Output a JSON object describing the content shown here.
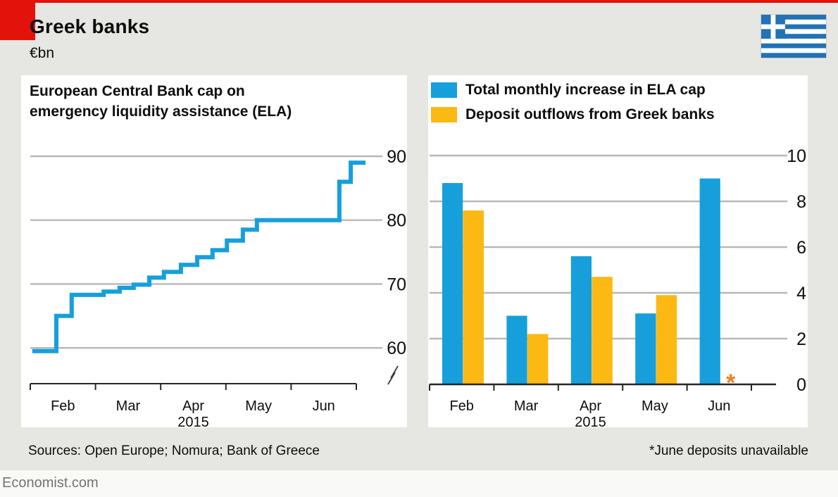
{
  "header": {
    "title": "Greek banks",
    "unit": "€bn"
  },
  "icons": {
    "flag": "greece-flag",
    "axis_break": "axis-break-icon",
    "missing_data": "asterisk"
  },
  "colors": {
    "accent_red": "#e3120b",
    "blue": "#169fdb",
    "yellow": "#fdb913",
    "orange_asterisk": "#f57e20",
    "grid": "#b8b8b8",
    "axis": "#262626"
  },
  "footer": {
    "sources": "Sources: Open Europe; Nomura; Bank of Greece",
    "footnote": "*June deposits unavailable",
    "site": "Economist.com"
  },
  "chart_data": [
    {
      "type": "line",
      "subtype": "step",
      "title_lines": [
        "European Central Bank cap on",
        "emergency liquidity assistance (ELA)"
      ],
      "x_tick_labels": [
        "Feb",
        "Mar",
        "Apr",
        "May",
        "Jun"
      ],
      "x_axis_note": "2015",
      "y_ticks": [
        60,
        70,
        80,
        90
      ],
      "ylim": [
        57,
        93
      ],
      "axis_break": true,
      "grid": true,
      "series": [
        {
          "name": "ELA cap (€bn)",
          "color": "#169fdb",
          "points": [
            {
              "x": 0.006,
              "v": 59.5
            },
            {
              "x": 0.08,
              "v": 65.0
            },
            {
              "x": 0.127,
              "v": 68.3
            },
            {
              "x": 0.225,
              "v": 68.8
            },
            {
              "x": 0.274,
              "v": 69.4
            },
            {
              "x": 0.317,
              "v": 69.9
            },
            {
              "x": 0.365,
              "v": 71.0
            },
            {
              "x": 0.41,
              "v": 71.9
            },
            {
              "x": 0.462,
              "v": 73.0
            },
            {
              "x": 0.512,
              "v": 74.2
            },
            {
              "x": 0.559,
              "v": 75.3
            },
            {
              "x": 0.603,
              "v": 76.8
            },
            {
              "x": 0.652,
              "v": 78.5
            },
            {
              "x": 0.695,
              "v": 80.0
            },
            {
              "x": 0.948,
              "v": 86.0
            },
            {
              "x": 0.983,
              "v": 89.0
            },
            {
              "x": 1.028,
              "v": 89.0
            }
          ]
        }
      ]
    },
    {
      "type": "bar",
      "categories": [
        "Feb",
        "Mar",
        "Apr",
        "May",
        "Jun"
      ],
      "x_axis_note": "2015",
      "y_ticks": [
        0,
        2,
        4,
        6,
        8,
        10
      ],
      "ylim": [
        0,
        10
      ],
      "grid": true,
      "legend_position": "top-left",
      "series": [
        {
          "name": "Total monthly increase in ELA cap",
          "color": "#169fdb",
          "values": [
            8.8,
            3.0,
            5.6,
            3.1,
            9.0
          ]
        },
        {
          "name": "Deposit outflows from Greek banks",
          "color": "#fdb913",
          "values": [
            7.6,
            2.2,
            4.7,
            3.9,
            null
          ]
        }
      ],
      "missing_marker": {
        "category": "Jun",
        "series": "Deposit outflows from Greek banks",
        "symbol": "*",
        "color": "#f57e20"
      }
    }
  ]
}
